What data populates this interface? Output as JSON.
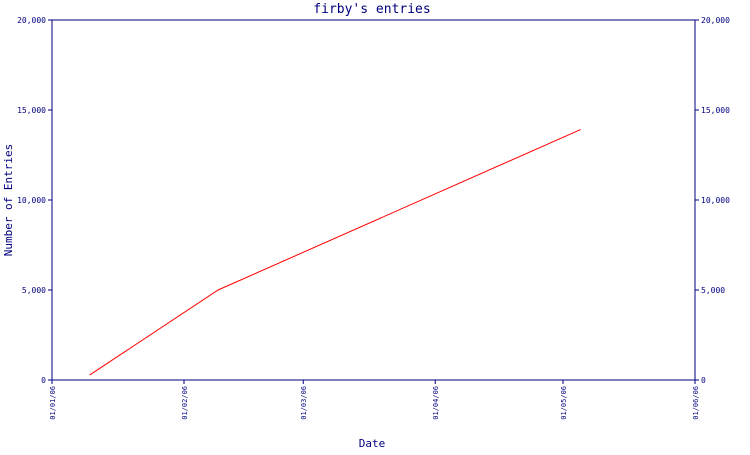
{
  "chart_data": {
    "type": "line",
    "title": "firby's entries",
    "xlabel": "Date",
    "ylabel": "Number of Entries",
    "ylim": [
      0,
      20000
    ],
    "xlim": [
      "2006-01-01",
      "2006-06-01"
    ],
    "y_ticks": [
      {
        "value": 0,
        "label": "0"
      },
      {
        "value": 5000,
        "label": "5,000"
      },
      {
        "value": 10000,
        "label": "10,000"
      },
      {
        "value": 15000,
        "label": "15,000"
      },
      {
        "value": 20000,
        "label": "20,000"
      }
    ],
    "x_ticks": [
      {
        "value": "2006-01-01",
        "label": "01/01/06"
      },
      {
        "value": "2006-02-01",
        "label": "01/02/06"
      },
      {
        "value": "2006-03-01",
        "label": "01/03/06"
      },
      {
        "value": "2006-04-01",
        "label": "01/04/06"
      },
      {
        "value": "2006-05-01",
        "label": "01/05/06"
      },
      {
        "value": "2006-06-01",
        "label": "01/06/06"
      }
    ],
    "right_axis_mirrors_left": true,
    "grid": false,
    "series": [
      {
        "color": "#ff0000",
        "points": [
          {
            "x": "2006-01-10",
            "y": 300
          },
          {
            "x": "2006-02-09",
            "y": 5000
          },
          {
            "x": "2006-05-05",
            "y": 13900
          }
        ]
      }
    ],
    "colors": {
      "axis": "#000080",
      "text": "#000080",
      "line": "#ff0000",
      "background": "#ffffff"
    }
  }
}
